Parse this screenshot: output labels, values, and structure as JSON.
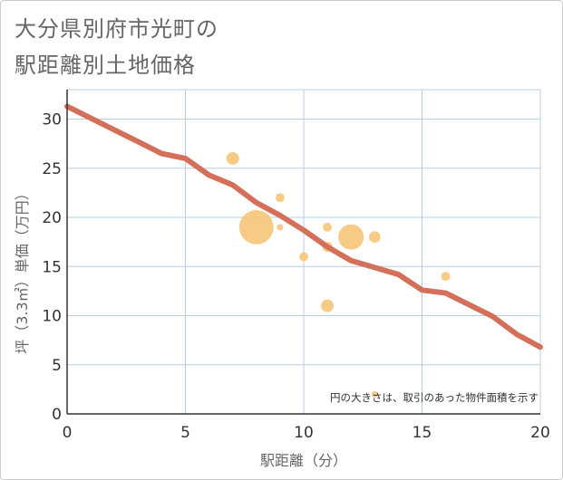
{
  "title_lines": [
    "大分県別府市光町の",
    "駅距離別土地価格"
  ],
  "chart_data": {
    "type": "scatter",
    "title": "大分県別府市光町の駅距離別土地価格",
    "xlabel": "駅距離（分）",
    "ylabel": "坪（3.3㎡）単価（万円）",
    "xlim": [
      0,
      20
    ],
    "ylim": [
      0,
      33
    ],
    "xticks": [
      0,
      5,
      10,
      15,
      20
    ],
    "yticks": [
      0,
      5,
      10,
      15,
      20,
      25,
      30
    ],
    "grid": true,
    "note": "円の大きさは、取引のあった物件面積を示す",
    "points": [
      {
        "x": 7,
        "y": 26,
        "size": 1.0
      },
      {
        "x": 8,
        "y": 19,
        "size": 2.7
      },
      {
        "x": 9,
        "y": 22,
        "size": 0.7
      },
      {
        "x": 9,
        "y": 19,
        "size": 0.5
      },
      {
        "x": 10,
        "y": 16,
        "size": 0.7
      },
      {
        "x": 11,
        "y": 19,
        "size": 0.7
      },
      {
        "x": 11,
        "y": 17,
        "size": 0.8
      },
      {
        "x": 11,
        "y": 11,
        "size": 1.0
      },
      {
        "x": 12,
        "y": 18,
        "size": 2.0
      },
      {
        "x": 13,
        "y": 18,
        "size": 0.9
      },
      {
        "x": 13,
        "y": 2,
        "size": 0.5
      },
      {
        "x": 16,
        "y": 14,
        "size": 0.7
      }
    ],
    "trend": {
      "x": [
        0,
        1,
        2,
        3,
        4,
        5,
        6,
        7,
        8,
        9,
        10,
        11,
        12,
        13,
        14,
        15,
        16,
        17,
        18,
        19,
        20
      ],
      "y": [
        31.3,
        30.1,
        28.9,
        27.7,
        26.5,
        26.0,
        24.3,
        23.3,
        21.5,
        20.2,
        18.7,
        17.0,
        15.6,
        14.9,
        14.2,
        12.6,
        12.3,
        11.1,
        9.9,
        8.1,
        6.8
      ]
    },
    "colors": {
      "bubble": "#f3c270",
      "trend": "#d4705a",
      "grid": "#b8cde0",
      "axis": "#333333"
    }
  }
}
